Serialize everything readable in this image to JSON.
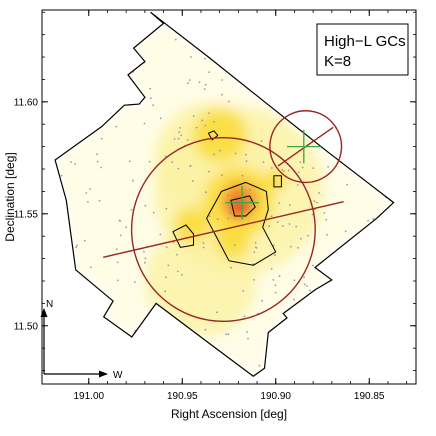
{
  "chart_data": {
    "type": "heatmap",
    "title": "",
    "legend_box": {
      "line1": "High−L GCs",
      "line2": "K=8"
    },
    "xlabel": "Right Ascension [deg]",
    "ylabel": "Declination [deg]",
    "xlim": [
      191.025,
      190.825
    ],
    "ylim": [
      11.474,
      11.641
    ],
    "x_axis_reversed": true,
    "x_ticks": [
      {
        "value": 191.0,
        "label": "191.00"
      },
      {
        "value": 190.95,
        "label": "190.95"
      },
      {
        "value": 190.9,
        "label": "190.90"
      },
      {
        "value": 190.85,
        "label": "190.85"
      }
    ],
    "y_ticks": [
      {
        "value": 11.6,
        "label": "11.60"
      },
      {
        "value": 11.55,
        "label": "11.55"
      },
      {
        "value": 11.5,
        "label": "11.50"
      }
    ],
    "compass": {
      "north": "N",
      "west": "W"
    },
    "colors": {
      "footprint": "#000000",
      "ellipse": "#9b2525",
      "cross": "#3aa845",
      "contour": "#000000",
      "points": "#9a9aa8",
      "density_low": "#fffde6",
      "density_mid": "#fbdd3c",
      "density_high": "#f08a2a",
      "density_peak": "#e53a26"
    },
    "footprint_polygon": [
      [
        190.967,
        11.64
      ],
      [
        190.936,
        11.62
      ],
      [
        190.906,
        11.6
      ],
      [
        190.872,
        11.5775
      ],
      [
        190.837,
        11.555
      ],
      [
        190.846,
        11.548
      ],
      [
        190.879,
        11.526
      ],
      [
        190.87,
        11.5205
      ],
      [
        190.879,
        11.516
      ],
      [
        190.896,
        11.5055
      ],
      [
        190.894,
        11.5035
      ],
      [
        190.904,
        11.497
      ],
      [
        190.906,
        11.481
      ],
      [
        190.912,
        11.4775
      ],
      [
        190.937,
        11.493
      ],
      [
        190.964,
        11.51
      ],
      [
        190.977,
        11.495
      ],
      [
        190.992,
        11.504
      ],
      [
        190.987,
        11.511
      ],
      [
        191.007,
        11.525
      ],
      [
        191.012,
        11.556
      ],
      [
        191.018,
        11.574
      ],
      [
        190.993,
        11.589
      ],
      [
        190.981,
        11.5985
      ],
      [
        190.973,
        11.599
      ],
      [
        190.97,
        11.602
      ],
      [
        190.979,
        11.612
      ],
      [
        190.97,
        11.618
      ],
      [
        190.976,
        11.624
      ],
      [
        190.96,
        11.635
      ]
    ],
    "density_blobs": [
      {
        "x": 190.92,
        "y": 11.56,
        "rx": 0.06,
        "ry": 0.038,
        "level": "low"
      },
      {
        "x": 190.935,
        "y": 11.575,
        "rx": 0.04,
        "ry": 0.025,
        "level": "low"
      },
      {
        "x": 190.94,
        "y": 11.52,
        "rx": 0.045,
        "ry": 0.025,
        "level": "low"
      },
      {
        "x": 190.93,
        "y": 11.585,
        "rx": 0.018,
        "ry": 0.012,
        "level": "mid"
      },
      {
        "x": 190.92,
        "y": 11.555,
        "rx": 0.026,
        "ry": 0.016,
        "level": "mid"
      },
      {
        "x": 190.945,
        "y": 11.545,
        "rx": 0.012,
        "ry": 0.008,
        "level": "mid"
      },
      {
        "x": 190.923,
        "y": 11.538,
        "rx": 0.015,
        "ry": 0.008,
        "level": "mid"
      },
      {
        "x": 190.9,
        "y": 11.565,
        "rx": 0.007,
        "ry": 0.005,
        "level": "mid"
      },
      {
        "x": 190.919,
        "y": 11.556,
        "rx": 0.013,
        "ry": 0.008,
        "level": "high"
      },
      {
        "x": 190.92,
        "y": 11.552,
        "rx": 0.007,
        "ry": 0.0045,
        "level": "peak"
      }
    ],
    "contours": [
      [
        [
          190.929,
          11.56
        ],
        [
          190.916,
          11.564
        ],
        [
          190.905,
          11.56
        ],
        [
          190.904,
          11.552
        ],
        [
          190.907,
          11.544
        ],
        [
          190.9,
          11.533
        ],
        [
          190.912,
          11.527
        ],
        [
          190.925,
          11.529
        ],
        [
          190.93,
          11.537
        ],
        [
          190.937,
          11.548
        ]
      ],
      [
        [
          190.924,
          11.556
        ],
        [
          190.914,
          11.558
        ],
        [
          190.911,
          11.553
        ],
        [
          190.916,
          11.549
        ],
        [
          190.922,
          11.549
        ]
      ],
      [
        [
          190.948,
          11.545
        ],
        [
          190.955,
          11.542
        ],
        [
          190.951,
          11.535
        ],
        [
          190.944,
          11.536
        ],
        [
          190.944,
          11.541
        ]
      ],
      [
        [
          190.936,
          11.586
        ],
        [
          190.933,
          11.587
        ],
        [
          190.931,
          11.585
        ],
        [
          190.934,
          11.583
        ]
      ],
      [
        [
          190.901,
          11.567
        ],
        [
          190.897,
          11.567
        ],
        [
          190.897,
          11.562
        ],
        [
          190.901,
          11.562
        ]
      ]
    ],
    "ellipses": [
      {
        "center": [
          190.928,
          11.543
        ],
        "rx_deg": 0.066,
        "ry_deg": 0.041,
        "angle_deg": -13,
        "major_axis_line": true
      },
      {
        "center": [
          190.884,
          11.58
        ],
        "rx_deg": 0.018,
        "ry_deg": 0.016,
        "angle_deg": -35,
        "major_axis_line": true
      }
    ],
    "crosses": [
      {
        "x": 190.918,
        "y": 11.555,
        "size_deg": 0.009
      },
      {
        "x": 190.885,
        "y": 11.58,
        "size_deg": 0.009
      }
    ]
  }
}
